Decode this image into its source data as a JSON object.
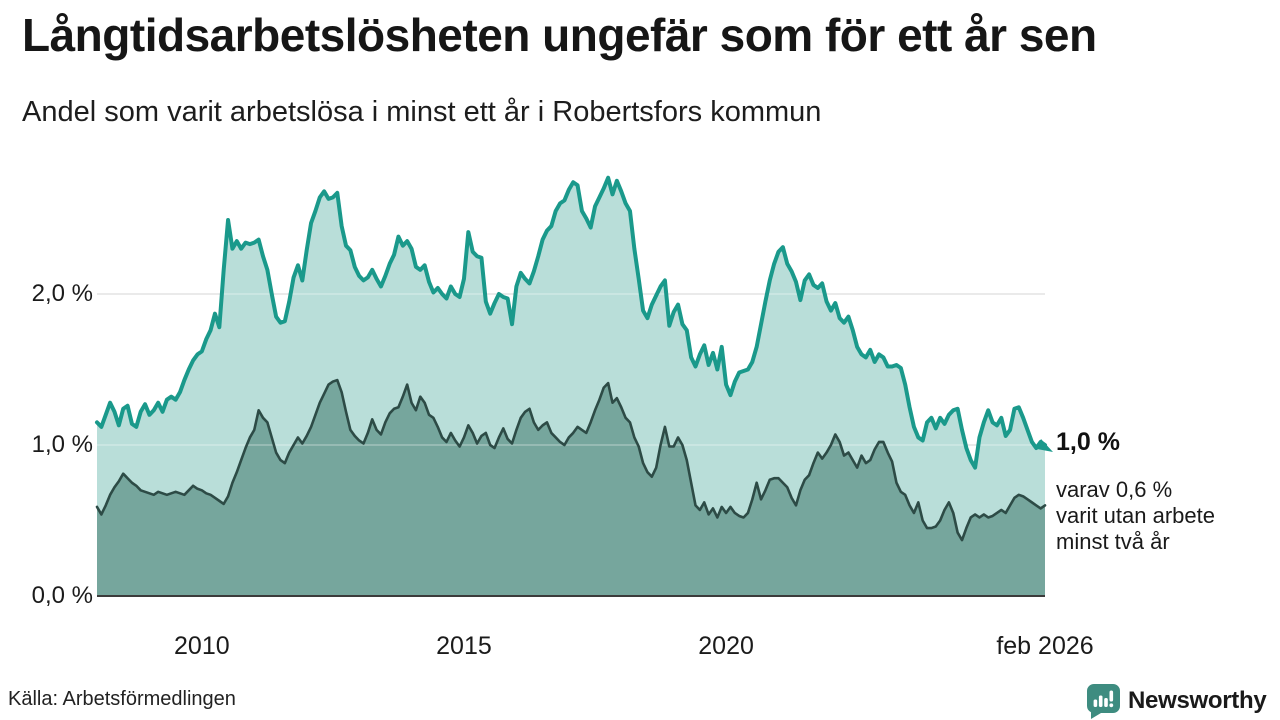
{
  "title": "Långtidsarbetslösheten ungefär som för ett år sen",
  "subtitle": "Andel som varit arbetslösa i minst ett år i Robertsfors kommun",
  "source": "Källa: Arbetsförmedlingen",
  "brand": {
    "name": "Newsworthy",
    "color": "#3e8c80"
  },
  "annotations": {
    "primary_value": "1,0 %",
    "secondary_lines": [
      "varav 0,6 %",
      "varit utan arbete",
      "minst två år"
    ]
  },
  "chart_data": {
    "type": "area",
    "unit": "%",
    "frequency": "monthly",
    "start": "2008-01",
    "end": "2026-02",
    "ylim": [
      0,
      2.95
    ],
    "grid": "horizontal",
    "gridline_color": "#d9d9d9",
    "axis_line_color": "#3b3b3b",
    "y_gridlines": [
      1.0,
      2.0
    ],
    "y_ticks": [
      {
        "label": "2,0 %",
        "value": 2.0
      },
      {
        "label": "1,0 %",
        "value": 1.0
      },
      {
        "label": "0,0 %",
        "value": 0.0
      }
    ],
    "x_ticks": [
      {
        "label": "2010",
        "pos": 2010.0
      },
      {
        "label": "2015",
        "pos": 2015.0
      },
      {
        "label": "2020",
        "pos": 2020.0
      },
      {
        "label": "feb 2026",
        "pos": 2026.083
      }
    ],
    "series": [
      {
        "name": "Andel som varit arbetslösa minst ett år",
        "stroke": "#1a998b",
        "fill": "#b9ded9",
        "last_value": 1.0,
        "last_value_label": "1,0 %",
        "values": [
          1.15,
          1.12,
          1.2,
          1.28,
          1.22,
          1.13,
          1.24,
          1.26,
          1.14,
          1.12,
          1.22,
          1.27,
          1.2,
          1.23,
          1.28,
          1.22,
          1.3,
          1.32,
          1.3,
          1.35,
          1.43,
          1.5,
          1.56,
          1.6,
          1.62,
          1.7,
          1.76,
          1.87,
          1.78,
          2.16,
          2.49,
          2.3,
          2.35,
          2.3,
          2.34,
          2.33,
          2.34,
          2.36,
          2.25,
          2.16,
          2.0,
          1.85,
          1.81,
          1.82,
          1.95,
          2.11,
          2.19,
          2.09,
          2.29,
          2.47,
          2.55,
          2.64,
          2.68,
          2.63,
          2.64,
          2.67,
          2.45,
          2.32,
          2.29,
          2.18,
          2.12,
          2.09,
          2.11,
          2.16,
          2.1,
          2.05,
          2.12,
          2.2,
          2.26,
          2.38,
          2.32,
          2.35,
          2.3,
          2.18,
          2.16,
          2.19,
          2.08,
          2.01,
          2.04,
          2.0,
          1.97,
          2.05,
          2.0,
          1.98,
          2.1,
          2.41,
          2.28,
          2.25,
          2.24,
          1.95,
          1.87,
          1.94,
          2.0,
          1.98,
          1.97,
          1.8,
          2.05,
          2.14,
          2.1,
          2.07,
          2.15,
          2.25,
          2.36,
          2.42,
          2.45,
          2.55,
          2.6,
          2.62,
          2.69,
          2.74,
          2.72,
          2.55,
          2.5,
          2.44,
          2.58,
          2.64,
          2.7,
          2.77,
          2.66,
          2.75,
          2.68,
          2.6,
          2.55,
          2.3,
          2.1,
          1.89,
          1.84,
          1.93,
          1.99,
          2.05,
          2.09,
          1.79,
          1.88,
          1.93,
          1.8,
          1.76,
          1.58,
          1.52,
          1.6,
          1.66,
          1.53,
          1.61,
          1.5,
          1.65,
          1.4,
          1.33,
          1.42,
          1.48,
          1.49,
          1.5,
          1.55,
          1.65,
          1.8,
          1.95,
          2.09,
          2.2,
          2.28,
          2.31,
          2.2,
          2.15,
          2.08,
          1.96,
          2.09,
          2.13,
          2.06,
          2.04,
          2.07,
          1.95,
          1.89,
          1.94,
          1.84,
          1.81,
          1.85,
          1.76,
          1.65,
          1.6,
          1.58,
          1.63,
          1.55,
          1.6,
          1.58,
          1.52,
          1.52,
          1.53,
          1.51,
          1.4,
          1.25,
          1.12,
          1.05,
          1.03,
          1.15,
          1.18,
          1.11,
          1.18,
          1.14,
          1.2,
          1.23,
          1.24,
          1.1,
          0.98,
          0.9,
          0.85,
          1.05,
          1.15,
          1.23,
          1.15,
          1.13,
          1.18,
          1.06,
          1.1,
          1.24,
          1.25,
          1.18,
          1.1,
          1.02,
          0.98,
          1.02,
          1.0
        ]
      },
      {
        "name": "varav utan arbete minst två år",
        "stroke": "#2d4b46",
        "fill": "#76a69d",
        "last_value": 0.6,
        "last_value_label": "0,6 %",
        "values": [
          0.59,
          0.54,
          0.6,
          0.67,
          0.72,
          0.76,
          0.81,
          0.78,
          0.75,
          0.73,
          0.7,
          0.69,
          0.68,
          0.67,
          0.69,
          0.68,
          0.67,
          0.68,
          0.69,
          0.68,
          0.67,
          0.7,
          0.73,
          0.71,
          0.7,
          0.68,
          0.67,
          0.65,
          0.63,
          0.61,
          0.66,
          0.75,
          0.82,
          0.9,
          0.98,
          1.05,
          1.1,
          1.23,
          1.18,
          1.15,
          1.05,
          0.95,
          0.9,
          0.88,
          0.95,
          1.0,
          1.05,
          1.01,
          1.06,
          1.12,
          1.2,
          1.28,
          1.34,
          1.4,
          1.42,
          1.43,
          1.35,
          1.22,
          1.1,
          1.06,
          1.03,
          1.01,
          1.08,
          1.17,
          1.1,
          1.07,
          1.15,
          1.21,
          1.24,
          1.25,
          1.32,
          1.4,
          1.28,
          1.23,
          1.32,
          1.28,
          1.2,
          1.18,
          1.12,
          1.05,
          1.02,
          1.08,
          1.03,
          0.99,
          1.05,
          1.13,
          1.08,
          1.01,
          1.06,
          1.08,
          1.0,
          0.98,
          1.05,
          1.11,
          1.04,
          1.01,
          1.1,
          1.18,
          1.22,
          1.24,
          1.15,
          1.1,
          1.13,
          1.15,
          1.08,
          1.05,
          1.02,
          1.0,
          1.05,
          1.08,
          1.12,
          1.1,
          1.08,
          1.15,
          1.23,
          1.3,
          1.38,
          1.41,
          1.28,
          1.31,
          1.25,
          1.18,
          1.15,
          1.05,
          0.99,
          0.88,
          0.82,
          0.79,
          0.85,
          1.0,
          1.12,
          0.99,
          0.99,
          1.05,
          1.0,
          0.9,
          0.75,
          0.6,
          0.57,
          0.62,
          0.54,
          0.58,
          0.52,
          0.59,
          0.55,
          0.59,
          0.55,
          0.53,
          0.52,
          0.55,
          0.64,
          0.75,
          0.64,
          0.7,
          0.77,
          0.78,
          0.78,
          0.75,
          0.72,
          0.65,
          0.6,
          0.7,
          0.77,
          0.8,
          0.88,
          0.95,
          0.91,
          0.95,
          1.0,
          1.07,
          1.02,
          0.93,
          0.95,
          0.9,
          0.85,
          0.93,
          0.88,
          0.9,
          0.97,
          1.02,
          1.02,
          0.95,
          0.89,
          0.75,
          0.69,
          0.67,
          0.6,
          0.55,
          0.62,
          0.5,
          0.45,
          0.45,
          0.46,
          0.5,
          0.57,
          0.62,
          0.55,
          0.42,
          0.37,
          0.45,
          0.52,
          0.54,
          0.52,
          0.54,
          0.52,
          0.53,
          0.55,
          0.57,
          0.55,
          0.6,
          0.65,
          0.67,
          0.66,
          0.64,
          0.62,
          0.6,
          0.58,
          0.6
        ]
      }
    ]
  }
}
